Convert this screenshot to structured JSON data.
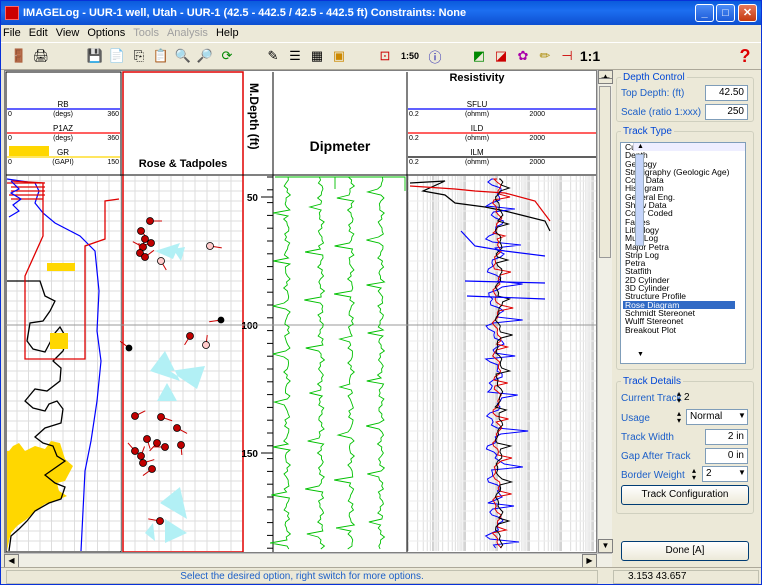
{
  "window": {
    "title": "IMAGELog - UUR-1 well, Utah - UUR-1 (42.5 - 442.5 / 42.5 - 442.5 ft) Constraints:  None",
    "min": "_",
    "max": "□",
    "close": "✕"
  },
  "menu": [
    {
      "label": "File",
      "enabled": true
    },
    {
      "label": "Edit",
      "enabled": true
    },
    {
      "label": "View",
      "enabled": true
    },
    {
      "label": "Options",
      "enabled": true
    },
    {
      "label": "Tools",
      "enabled": false
    },
    {
      "label": "Analysis",
      "enabled": false
    },
    {
      "label": "Help",
      "enabled": true
    }
  ],
  "toolbar": {
    "scale_label": "1:50",
    "ratio_label": "1:1",
    "help_glyph": "?"
  },
  "tracks": {
    "log_headers": [
      {
        "name": "RB",
        "unit": "(degs)",
        "min": "0",
        "max": "360",
        "color": "#0000ff"
      },
      {
        "name": "P1AZ",
        "unit": "(degs)",
        "min": "0",
        "max": "360",
        "color": "#ff0000"
      },
      {
        "name": "GR",
        "unit": "(GAPI)",
        "min": "0",
        "max": "150",
        "color": "#ffd700"
      }
    ],
    "rose_title": "Rose & Tadpoles",
    "depth_title": "M.Depth (ft)",
    "dipmeter_title": "Dipmeter",
    "resistivity_title": "Resistivity",
    "res_headers": [
      {
        "name": "SFLU",
        "unit": "(ohmm)",
        "min": "0.2",
        "max": "2000",
        "color": "#0000ff"
      },
      {
        "name": "ILD",
        "unit": "(ohmm)",
        "min": "0.2",
        "max": "2000",
        "color": "#ff0000"
      },
      {
        "name": "ILM",
        "unit": "(ohmm)",
        "min": "0.2",
        "max": "2000",
        "color": "#000000"
      }
    ],
    "depth_ticks": [
      "50",
      "100",
      "150"
    ]
  },
  "depth_control": {
    "legend": "Depth Control",
    "top_depth_label": "Top Depth: (ft)",
    "top_depth_value": "42.50",
    "scale_label": "Scale (ratio 1:xxx)",
    "scale_value": "250"
  },
  "track_type": {
    "legend": "Track Type",
    "items": [
      "Curve",
      "Depth",
      "Geology",
      "Stratigraphy (Geologic Age)",
      "Core Data",
      "Histogram",
      "General Eng.",
      "Show Data",
      "Color Coded",
      "Facies",
      "Lithology",
      "Mud Log",
      "Major Petra",
      "Strip Log",
      "Petra",
      "Statfith",
      "2D Cylinder",
      "3D Cylinder",
      "Structure Profile",
      "Rose Diagram",
      "Schmidt Stereonet",
      "Wulff Stereonet",
      "Breakout Plot"
    ],
    "selected": "Rose Diagram"
  },
  "track_details": {
    "legend": "Track Details",
    "current_track_label": "Current Track",
    "current_track_value": "2",
    "usage_label": "Usage",
    "usage_value": "Normal",
    "track_width_label": "Track Width",
    "track_width_value": "2 in",
    "gap_label": "Gap After Track",
    "gap_value": "0 in",
    "border_weight_label": "Border Weight",
    "border_weight_value": "2",
    "config_button": "Track Configuration"
  },
  "done_button": "Done [A]",
  "status": {
    "message": "Select the desired option, right switch for more options.",
    "coords": "3.153  43.657"
  }
}
